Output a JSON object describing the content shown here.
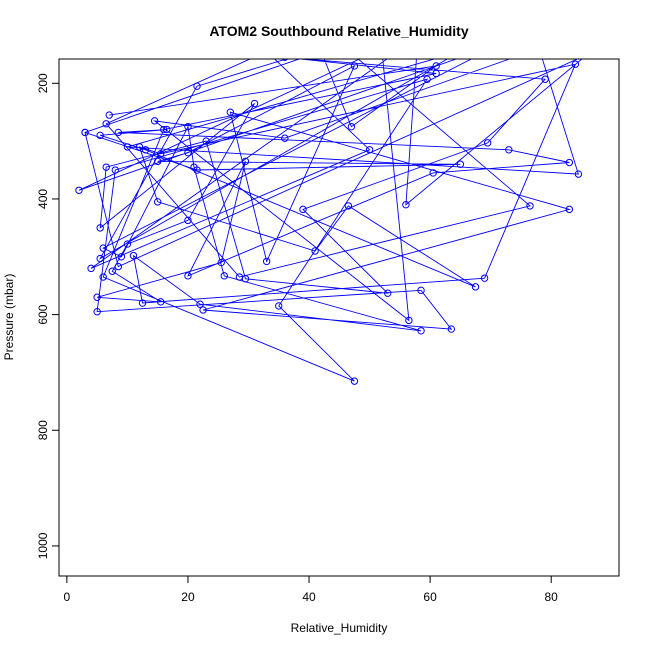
{
  "chart_data": {
    "type": "scatter",
    "title": "ATOM2 Southbound Relative_Humidity",
    "xlabel": "Relative_Humidity",
    "ylabel": "Pressure (mbar)",
    "xlim": [
      -1.3,
      91.2
    ],
    "ylim": [
      1052,
      158
    ],
    "y_reversed": true,
    "xticks": [
      0,
      20,
      40,
      60,
      80
    ],
    "yticks": [
      200,
      400,
      600,
      800,
      1000
    ],
    "grid": false,
    "legend": "none",
    "line_color": "#0000ff",
    "marker_color": "#0000ff",
    "marker": "open-circle",
    "overflow_points": [
      {
        "x": 33,
        "y": 145
      },
      {
        "x": 42,
        "y": 150
      },
      {
        "x": 45,
        "y": 130
      },
      {
        "x": 52,
        "y": 140
      },
      {
        "x": 58,
        "y": 120
      },
      {
        "x": 65,
        "y": 145
      },
      {
        "x": 72,
        "y": 130
      },
      {
        "x": 78,
        "y": 140
      },
      {
        "x": 86,
        "y": 150
      }
    ],
    "series": [
      {
        "values": [
          {
            "x": 7,
            "y": 255
          },
          {
            "x": 61,
            "y": 170
          },
          {
            "x": 47,
            "y": 275
          },
          {
            "x": 42,
            "y": 145
          },
          {
            "x": 3,
            "y": 285
          },
          {
            "x": 8.5,
            "y": 517
          },
          {
            "x": 86,
            "y": 150
          },
          {
            "x": 56,
            "y": 410
          },
          {
            "x": 58,
            "y": 120
          },
          {
            "x": 4,
            "y": 520
          },
          {
            "x": 50,
            "y": 315
          },
          {
            "x": 33,
            "y": 145
          },
          {
            "x": 6.5,
            "y": 270
          },
          {
            "x": 28.5,
            "y": 535
          },
          {
            "x": 76.5,
            "y": 412
          },
          {
            "x": 45,
            "y": 130
          },
          {
            "x": 21.5,
            "y": 205
          },
          {
            "x": 5.5,
            "y": 503
          },
          {
            "x": 65,
            "y": 145
          },
          {
            "x": 10,
            "y": 310
          },
          {
            "x": 84.5,
            "y": 357
          },
          {
            "x": 78,
            "y": 140
          },
          {
            "x": 36,
            "y": 295
          },
          {
            "x": 14.5,
            "y": 265
          },
          {
            "x": 56.5,
            "y": 610
          },
          {
            "x": 52,
            "y": 140
          },
          {
            "x": 2,
            "y": 385
          },
          {
            "x": 72,
            "y": 130
          },
          {
            "x": 6,
            "y": 485
          },
          {
            "x": 9,
            "y": 500
          },
          {
            "x": 20,
            "y": 275
          },
          {
            "x": 21,
            "y": 345
          },
          {
            "x": 26,
            "y": 533
          },
          {
            "x": 58.5,
            "y": 628
          },
          {
            "x": 22,
            "y": 582
          },
          {
            "x": 11,
            "y": 498
          },
          {
            "x": 12.5,
            "y": 580
          },
          {
            "x": 69,
            "y": 537
          },
          {
            "x": 84,
            "y": 167
          },
          {
            "x": 15.5,
            "y": 322
          },
          {
            "x": 12,
            "y": 310
          },
          {
            "x": 15,
            "y": 405
          },
          {
            "x": 41,
            "y": 490
          },
          {
            "x": 46.5,
            "y": 412
          },
          {
            "x": 67.5,
            "y": 552
          },
          {
            "x": 13,
            "y": 315
          },
          {
            "x": 5.5,
            "y": 290
          },
          {
            "x": 16.5,
            "y": 280
          },
          {
            "x": 8.5,
            "y": 285
          },
          {
            "x": 73,
            "y": 315
          },
          {
            "x": 83,
            "y": 337
          },
          {
            "x": 60.5,
            "y": 355
          },
          {
            "x": 20,
            "y": 533
          },
          {
            "x": 29.5,
            "y": 335
          },
          {
            "x": 25.5,
            "y": 510
          },
          {
            "x": 5,
            "y": 570
          },
          {
            "x": 15.5,
            "y": 578
          },
          {
            "x": 7.5,
            "y": 525
          },
          {
            "x": 10,
            "y": 478
          },
          {
            "x": 20,
            "y": 437
          },
          {
            "x": 31,
            "y": 235
          },
          {
            "x": 5.5,
            "y": 450
          },
          {
            "x": 6.5,
            "y": 345
          },
          {
            "x": 23,
            "y": 300
          },
          {
            "x": 29.5,
            "y": 538
          },
          {
            "x": 53,
            "y": 563
          },
          {
            "x": 39,
            "y": 418
          },
          {
            "x": 69.5,
            "y": 303
          },
          {
            "x": 79,
            "y": 193
          },
          {
            "x": 36,
            "y": 155
          },
          {
            "x": 61,
            "y": 183
          },
          {
            "x": 16,
            "y": 280
          },
          {
            "x": 6,
            "y": 535
          },
          {
            "x": 47.5,
            "y": 715
          },
          {
            "x": 35,
            "y": 585
          },
          {
            "x": 59.5,
            "y": 193
          },
          {
            "x": 8,
            "y": 350
          },
          {
            "x": 5,
            "y": 595
          },
          {
            "x": 58.5,
            "y": 558
          },
          {
            "x": 63.5,
            "y": 625
          },
          {
            "x": 22.5,
            "y": 592
          },
          {
            "x": 83,
            "y": 418
          },
          {
            "x": 27,
            "y": 250
          },
          {
            "x": 33,
            "y": 508
          },
          {
            "x": 47.5,
            "y": 170
          },
          {
            "x": 20,
            "y": 320
          },
          {
            "x": 15,
            "y": 335
          },
          {
            "x": 65,
            "y": 340
          },
          {
            "x": 21.5,
            "y": 350
          },
          {
            "x": 3,
            "y": 285
          }
        ]
      }
    ]
  }
}
